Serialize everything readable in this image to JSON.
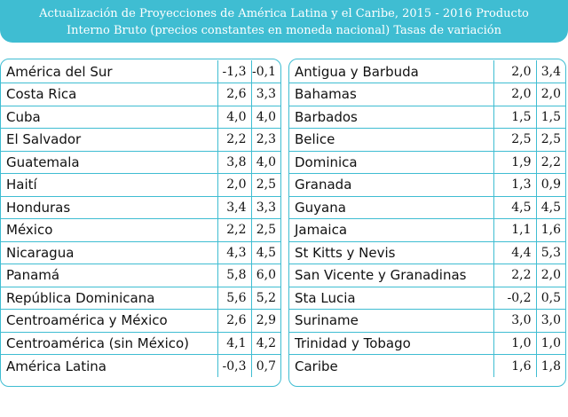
{
  "title": {
    "line1": "Actualización de Proyecciones de América Latina y el Caribe, 2015 - 2016 Producto",
    "line2": "Interno Bruto (precios constantes en moneda nacional) Tasas de variación"
  },
  "left_table": [
    {
      "name": "América del Sur",
      "v2015": "-1,3",
      "v2016": "-0,1"
    },
    {
      "name": "Costa Rica",
      "v2015": "2,6",
      "v2016": "3,3"
    },
    {
      "name": "Cuba",
      "v2015": "4,0",
      "v2016": "4,0"
    },
    {
      "name": "El Salvador",
      "v2015": "2,2",
      "v2016": "2,3"
    },
    {
      "name": "Guatemala",
      "v2015": "3,8",
      "v2016": "4,0"
    },
    {
      "name": "Haití",
      "v2015": "2,0",
      "v2016": "2,5"
    },
    {
      "name": "Honduras",
      "v2015": "3,4",
      "v2016": "3,3"
    },
    {
      "name": "México",
      "v2015": "2,2",
      "v2016": "2,5"
    },
    {
      "name": "Nicaragua",
      "v2015": "4,3",
      "v2016": "4,5"
    },
    {
      "name": "Panamá",
      "v2015": "5,8",
      "v2016": "6,0"
    },
    {
      "name": "República Dominicana",
      "v2015": "5,6",
      "v2016": "5,2"
    },
    {
      "name": "Centroamérica y México",
      "v2015": "2,6",
      "v2016": "2,9"
    },
    {
      "name": "Centroamérica (sin México)",
      "v2015": "4,1",
      "v2016": "4,2"
    },
    {
      "name": "América Latina",
      "v2015": "-0,3",
      "v2016": "0,7"
    }
  ],
  "right_table": [
    {
      "name": "Antigua y Barbuda",
      "v2015": "2,0",
      "v2016": "3,4"
    },
    {
      "name": "Bahamas",
      "v2015": "2,0",
      "v2016": "2,0"
    },
    {
      "name": "Barbados",
      "v2015": "1,5",
      "v2016": "1,5"
    },
    {
      "name": "Belice",
      "v2015": "2,5",
      "v2016": "2,5"
    },
    {
      "name": "Dominica",
      "v2015": "1,9",
      "v2016": "2,2"
    },
    {
      "name": "Granada",
      "v2015": "1,3",
      "v2016": "0,9"
    },
    {
      "name": "Guyana",
      "v2015": "4,5",
      "v2016": "4,5"
    },
    {
      "name": "Jamaica",
      "v2015": "1,1",
      "v2016": "1,6"
    },
    {
      "name": "St Kitts y Nevis",
      "v2015": "4,4",
      "v2016": "5,3"
    },
    {
      "name": "San Vicente y Granadinas",
      "v2015": "2,2",
      "v2016": "2,0"
    },
    {
      "name": "Sta Lucia",
      "v2015": "-0,2",
      "v2016": "0,5"
    },
    {
      "name": "Suriname",
      "v2015": "3,0",
      "v2016": "3,0"
    },
    {
      "name": "Trinidad y Tobago",
      "v2015": "1,0",
      "v2016": "1,0"
    },
    {
      "name": "Caribe",
      "v2015": "1,6",
      "v2016": "1,8"
    }
  ],
  "colors": {
    "accent": "#3fbdd2",
    "header_text": "#ffffff"
  }
}
